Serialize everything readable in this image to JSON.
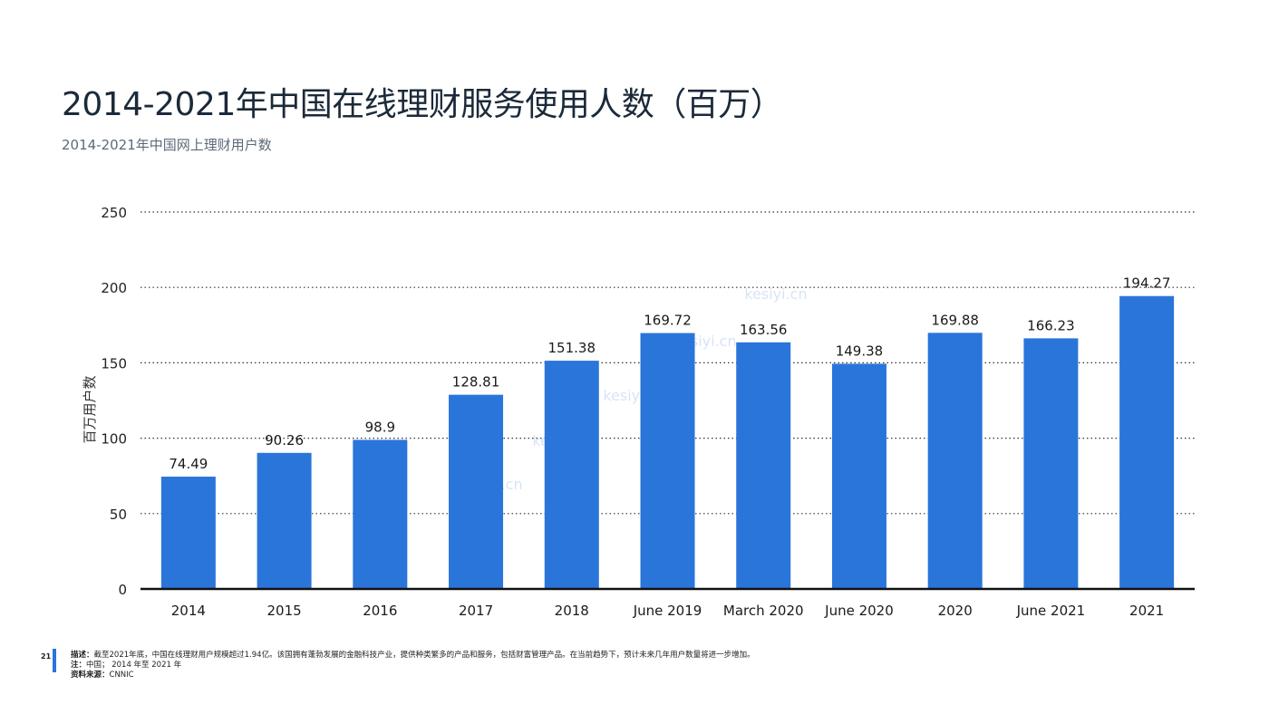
{
  "title": "2014-2021年中国在线理财服务使用人数（百万）",
  "subtitle": "2014-2021年中国网上理财用户数",
  "chart_data": {
    "type": "bar",
    "categories": [
      "2014",
      "2015",
      "2016",
      "2017",
      "2018",
      "June 2019",
      "March 2020",
      "June 2020",
      "2020",
      "June 2021",
      "2021"
    ],
    "values": [
      74.49,
      90.26,
      98.9,
      128.81,
      151.38,
      169.72,
      163.56,
      149.38,
      169.88,
      166.23,
      194.27
    ],
    "value_labels": [
      "74.49",
      "90.26",
      "98.9",
      "128.81",
      "151.38",
      "169.72",
      "163.56",
      "149.38",
      "169.88",
      "166.23",
      "194.27"
    ],
    "ylabel": "百万用户数",
    "ylim": [
      0,
      250
    ],
    "yticks": [
      0,
      50,
      100,
      150,
      200,
      250
    ],
    "bar_color": "#2a75d9",
    "grid": "dotted-horizontal",
    "watermark": "kesiyi.cn"
  },
  "footer": {
    "page_number": "21",
    "description_label": "描述：",
    "description": "截至2021年底，中国在线理财用户规模超过1.94亿。该国拥有蓬勃发展的金融科技产业，提供种类繁多的产品和服务，包括财富管理产品。在当前趋势下，预计未来几年用户数量将进一步增加。",
    "note_label": "注：",
    "note": "中国； 2014 年至 2021 年",
    "source_label": "资料来源：",
    "source": "CNNIC"
  }
}
